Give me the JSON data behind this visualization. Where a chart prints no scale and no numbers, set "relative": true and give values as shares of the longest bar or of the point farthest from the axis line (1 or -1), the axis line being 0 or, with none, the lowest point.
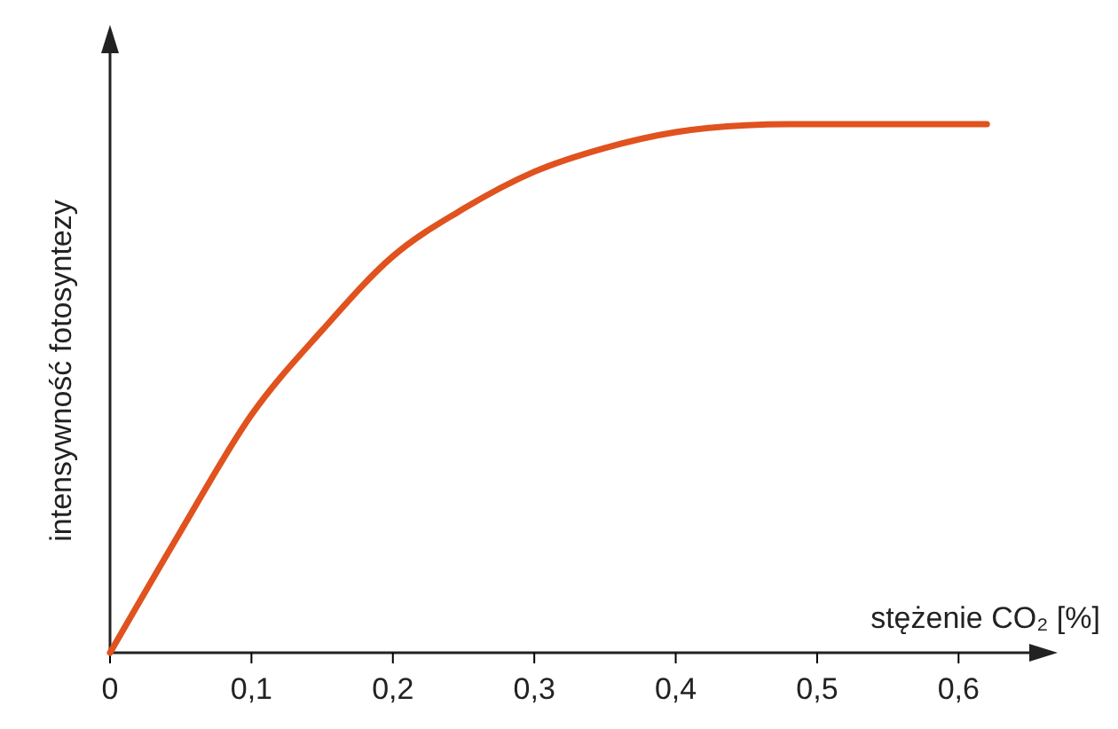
{
  "chart_data": {
    "type": "line",
    "relative": true,
    "xlabel": "stężenie CO₂ [%]",
    "ylabel": "intensywność fotosyntezy",
    "x": [
      0,
      0.05,
      0.1,
      0.15,
      0.2,
      0.25,
      0.3,
      0.35,
      0.4,
      0.45,
      0.48,
      0.55,
      0.62
    ],
    "series": [
      {
        "color": "#e0521e",
        "values": [
          0,
          0.23,
          0.45,
          0.61,
          0.75,
          0.84,
          0.91,
          0.955,
          0.985,
          0.998,
          1,
          1,
          1
        ]
      }
    ],
    "xlim": [
      0,
      0.65
    ],
    "xticks": [
      {
        "value": 0,
        "label": "0"
      },
      {
        "value": 0.1,
        "label": "0,1"
      },
      {
        "value": 0.2,
        "label": "0,2"
      },
      {
        "value": 0.3,
        "label": "0,3"
      },
      {
        "value": 0.4,
        "label": "0,4"
      },
      {
        "value": 0.5,
        "label": "0,5"
      },
      {
        "value": 0.6,
        "label": "0,6"
      }
    ],
    "grid": false
  }
}
